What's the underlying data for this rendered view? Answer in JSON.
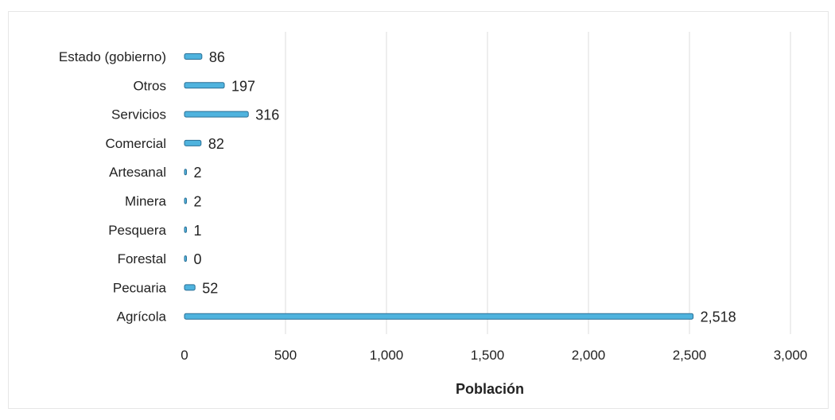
{
  "chart_data": {
    "type": "bar",
    "orientation": "horizontal",
    "categories": [
      "Estado (gobierno)",
      "Otros",
      "Servicios",
      "Comercial",
      "Artesanal",
      "Minera",
      "Pesquera",
      "Forestal",
      "Pecuaria",
      "Agrícola"
    ],
    "values": [
      86,
      197,
      316,
      82,
      2,
      2,
      1,
      0,
      52,
      2518
    ],
    "value_labels": [
      "86",
      "197",
      "316",
      "82",
      "2",
      "2",
      "1",
      "0",
      "52",
      "2,518"
    ],
    "xlabel": "Población",
    "xlim": [
      0,
      3000
    ],
    "xticks": [
      0,
      500,
      1000,
      1500,
      2000,
      2500,
      3000
    ],
    "xtick_labels": [
      "0",
      "500",
      "1,000",
      "1,500",
      "2,000",
      "2,500",
      "3,000"
    ],
    "grid": "vertical",
    "colors": {
      "bar_fill": "#4fb3de",
      "bar_edge": "#2a6f95"
    }
  }
}
